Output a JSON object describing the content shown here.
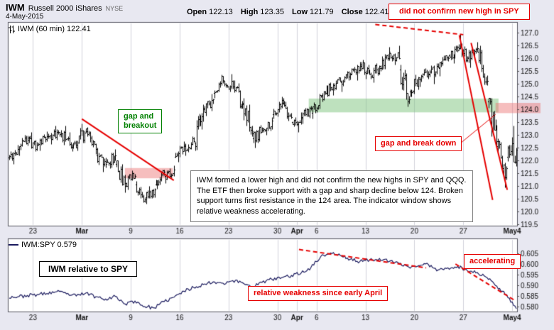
{
  "page": {
    "bg": "#e8e8f1",
    "plot_bg": "#ffffff",
    "grid_color": "#d2d2dc",
    "frame_color": "#55555f",
    "bar_color": "#000000",
    "ratio_line_color": "#1a1a5e",
    "red": "#e60000",
    "green": "#008000"
  },
  "header": {
    "symbol": "IWM",
    "name": "Russell 2000 iShares",
    "exchange": "NYSE",
    "date": "4-May-2015",
    "quote": {
      "open_label": "Open",
      "open": "122.13",
      "high_label": "High",
      "high": "123.35",
      "low_label": "Low",
      "low": "121.79",
      "close_label": "Close",
      "close": "122.41"
    }
  },
  "annotations": {
    "no_confirm": "did not confirm new high in SPY",
    "gap_breakout": "gap and breakout",
    "gap_breakdown": "gap and break down",
    "commentary": "IWM formed a lower high and did not confirm the new highs in SPY and QQQ. The ETF then broke support with a gap and sharp decline below 124. Broken support turns first resistance in the 124 area. The indicator window shows relative weakness accelerating.",
    "rel_title": "IWM relative to SPY",
    "rel_weakness": "relative weakness since early April",
    "accelerating": "accelerating"
  },
  "chart_data": [
    {
      "type": "ohlc",
      "panel": "price",
      "legend": "IWM (60 min) 122.41",
      "symbol": "IWM",
      "timeframe": "60 min",
      "last": 122.41,
      "ylim": [
        119.5,
        127.0
      ],
      "y_ticks": [
        127.0,
        126.5,
        126.0,
        125.5,
        125.0,
        124.5,
        124.0,
        123.5,
        123.0,
        122.5,
        122.0,
        121.5,
        121.0,
        120.5,
        120.0,
        119.5
      ],
      "grid": "vertical-weekly",
      "bars_per_day": 7,
      "seed": 11,
      "x_labels": [
        {
          "day": 2,
          "label": "23"
        },
        {
          "day": 7,
          "label": "Mar"
        },
        {
          "day": 12,
          "label": "9"
        },
        {
          "day": 17,
          "label": "16"
        },
        {
          "day": 22,
          "label": "23"
        },
        {
          "day": 27,
          "label": "30"
        },
        {
          "day": 29,
          "label": "Apr"
        },
        {
          "day": 31,
          "label": "6"
        },
        {
          "day": 36,
          "label": "13"
        },
        {
          "day": 41,
          "label": "20"
        },
        {
          "day": 46,
          "label": "27"
        },
        {
          "day": 51,
          "label": "May4"
        }
      ],
      "day_format": [
        "date",
        "open",
        "high",
        "low",
        "close"
      ],
      "days": [
        [
          "Feb 19",
          122.1,
          122.6,
          121.85,
          122.45
        ],
        [
          "Feb 20",
          122.45,
          123.0,
          122.2,
          122.9
        ],
        [
          "Feb 23",
          122.8,
          123.1,
          122.35,
          122.6
        ],
        [
          "Feb 24",
          122.6,
          123.15,
          122.4,
          122.95
        ],
        [
          "Feb 25",
          122.95,
          123.35,
          122.65,
          123.1
        ],
        [
          "Feb 26",
          123.1,
          123.35,
          122.6,
          122.85
        ],
        [
          "Feb 27",
          122.85,
          123.1,
          122.35,
          122.5
        ],
        [
          "Mar 2",
          122.6,
          123.45,
          122.4,
          123.25
        ],
        [
          "Mar 3",
          123.15,
          123.3,
          122.25,
          122.45
        ],
        [
          "Mar 4",
          122.2,
          122.5,
          121.55,
          121.85
        ],
        [
          "Mar 5",
          121.95,
          122.45,
          121.7,
          122.2
        ],
        [
          "Mar 6",
          121.85,
          122.0,
          120.75,
          121.0
        ],
        [
          "Mar 9",
          121.1,
          121.6,
          120.85,
          121.4
        ],
        [
          "Mar 10",
          121.05,
          121.2,
          120.35,
          120.5
        ],
        [
          "Mar 11",
          120.55,
          121.0,
          120.3,
          120.85
        ],
        [
          "Mar 12",
          121.05,
          121.65,
          120.9,
          121.55
        ],
        [
          "Mar 13",
          121.4,
          121.8,
          121.1,
          121.65
        ],
        [
          "Mar 16",
          122.15,
          122.75,
          121.95,
          122.6
        ],
        [
          "Mar 17",
          122.55,
          122.95,
          122.2,
          122.75
        ],
        [
          "Mar 18",
          122.7,
          124.2,
          122.4,
          124.0
        ],
        [
          "Mar 19",
          124.05,
          124.6,
          123.75,
          124.4
        ],
        [
          "Mar 20",
          124.65,
          125.35,
          124.45,
          125.15
        ],
        [
          "Mar 23",
          125.1,
          125.4,
          124.7,
          124.9
        ],
        [
          "Mar 24",
          124.9,
          125.15,
          124.05,
          124.2
        ],
        [
          "Mar 25",
          124.25,
          124.45,
          122.95,
          123.05
        ],
        [
          "Mar 26",
          122.85,
          123.4,
          122.5,
          123.2
        ],
        [
          "Mar 27",
          123.25,
          123.7,
          123.0,
          123.55
        ],
        [
          "Mar 30",
          123.8,
          124.5,
          123.65,
          124.35
        ],
        [
          "Mar 31",
          124.25,
          124.45,
          123.55,
          123.7
        ],
        [
          "Apr 1",
          123.5,
          123.9,
          123.1,
          123.65
        ],
        [
          "Apr 2",
          123.7,
          124.15,
          123.45,
          124.05
        ],
        [
          "Apr 6",
          123.85,
          124.6,
          123.65,
          124.5
        ],
        [
          "Apr 7",
          124.55,
          125.05,
          124.3,
          124.8
        ],
        [
          "Apr 8",
          124.85,
          125.25,
          124.55,
          125.1
        ],
        [
          "Apr 9",
          125.05,
          125.5,
          124.7,
          125.35
        ],
        [
          "Apr 10",
          125.4,
          125.85,
          125.15,
          125.7
        ],
        [
          "Apr 13",
          125.75,
          125.95,
          125.2,
          125.4
        ],
        [
          "Apr 14",
          125.4,
          125.8,
          125.05,
          125.6
        ],
        [
          "Apr 15",
          125.7,
          126.45,
          125.5,
          126.25
        ],
        [
          "Apr 16",
          126.2,
          126.5,
          125.75,
          126.0
        ],
        [
          "Apr 17",
          125.55,
          125.75,
          124.1,
          124.4
        ],
        [
          "Apr 20",
          124.7,
          125.35,
          124.5,
          125.2
        ],
        [
          "Apr 21",
          125.25,
          125.6,
          124.9,
          125.4
        ],
        [
          "Apr 22",
          125.35,
          125.8,
          125.0,
          125.65
        ],
        [
          "Apr 23",
          125.6,
          126.1,
          125.3,
          126.0
        ],
        [
          "Apr 24",
          126.1,
          126.5,
          125.8,
          126.3
        ],
        [
          "Apr 27",
          126.45,
          126.95,
          125.85,
          126.05
        ],
        [
          "Apr 28",
          126.0,
          126.65,
          125.65,
          126.4
        ],
        [
          "Apr 29",
          126.25,
          126.5,
          124.95,
          125.1
        ],
        [
          "Apr 30",
          124.3,
          124.45,
          122.55,
          122.75
        ],
        [
          "May 1",
          122.55,
          122.85,
          120.95,
          121.7
        ],
        [
          "May 4",
          122.13,
          123.35,
          121.79,
          122.41
        ]
      ],
      "zones": [
        {
          "label": "broken-trendline-support",
          "d0": 11.4,
          "d1": 16.3,
          "p0": 121.7,
          "p1": 121.3,
          "fill": "rgba(235,110,110,0.45)"
        },
        {
          "label": "support-zone-124",
          "d0": 30.2,
          "d1": 49.6,
          "p0": 124.42,
          "p1": 123.88,
          "fill": "rgba(125,195,125,0.5)"
        },
        {
          "label": "broken-support-turns-resistance",
          "d0": 49.3,
          "d1": 53.9,
          "p0": 124.25,
          "p1": 123.85,
          "fill": "rgba(235,110,110,0.45)"
        }
      ],
      "lines": [
        {
          "label": "falling-trendline",
          "d0": 7.0,
          "p0": 123.62,
          "d1": 16.4,
          "p1": 121.22,
          "color": "#e60000",
          "width": 2
        },
        {
          "label": "lower-high-dashed",
          "d0": 37.0,
          "p0": 127.32,
          "d1": 46.0,
          "p1": 126.92,
          "color": "#e60000",
          "width": 2,
          "dash": [
            6,
            4
          ]
        },
        {
          "label": "sharp-decline-1",
          "d0": 45.6,
          "p0": 126.9,
          "d1": 49.0,
          "p1": 120.45,
          "color": "#e60000",
          "width": 2
        },
        {
          "label": "sharp-decline-2",
          "d0": 46.8,
          "p0": 126.6,
          "d1": 50.5,
          "p1": 120.85,
          "color": "#e60000",
          "width": 2
        },
        {
          "label": "pointer-to-gap",
          "d0": 45.8,
          "p0": 122.7,
          "d1": 49.3,
          "p1": 123.8,
          "color": "#e60000",
          "width": 1
        }
      ]
    },
    {
      "type": "line",
      "panel": "ratio",
      "legend": "IWM:SPY 0.579",
      "last": 0.579,
      "ylim": [
        0.578,
        0.612
      ],
      "y_ticks": [
        0.605,
        0.6,
        0.595,
        0.59,
        0.585,
        0.58
      ],
      "grid": "vertical-weekly",
      "seed": 23,
      "values": [
        0.5846,
        0.5852,
        0.5856,
        0.5862,
        0.587,
        0.586,
        0.585,
        0.5864,
        0.5846,
        0.5836,
        0.5848,
        0.5812,
        0.5826,
        0.58,
        0.5794,
        0.5824,
        0.5844,
        0.5872,
        0.589,
        0.5904,
        0.5916,
        0.591,
        0.5922,
        0.5912,
        0.5894,
        0.5914,
        0.5928,
        0.5936,
        0.5946,
        0.5958,
        0.5984,
        0.6035,
        0.6052,
        0.604,
        0.6022,
        0.6012,
        0.6018,
        0.6026,
        0.6012,
        0.6002,
        0.5986,
        0.5992,
        0.5998,
        0.5972,
        0.5982,
        0.5988,
        0.5968,
        0.596,
        0.5936,
        0.5896,
        0.5856,
        0.579
      ],
      "lines": [
        {
          "label": "weakness-trend-dashed",
          "d0": 29.2,
          "p0": 0.6068,
          "d1": 42.2,
          "p1": 0.5982,
          "color": "#e60000",
          "width": 2,
          "dash": [
            6,
            4
          ]
        },
        {
          "label": "accelerating-trend-dashed",
          "d0": 45.2,
          "p0": 0.6,
          "d1": 51.3,
          "p1": 0.5828,
          "color": "#e60000",
          "width": 2,
          "dash": [
            6,
            4
          ]
        }
      ]
    }
  ]
}
